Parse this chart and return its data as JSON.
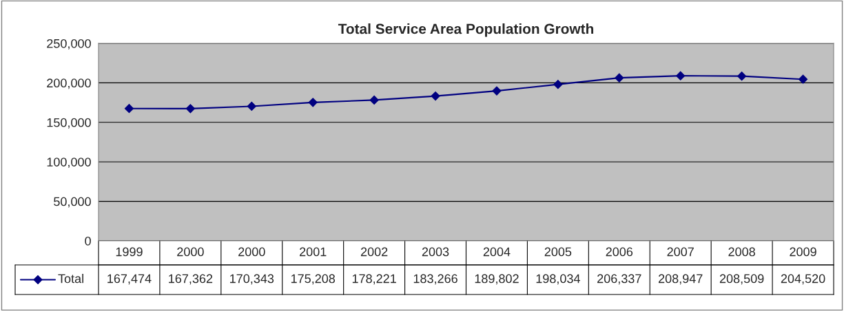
{
  "chart_data": {
    "type": "line",
    "title": "Total Service Area Population Growth",
    "categories": [
      "1999",
      "2000",
      "2000",
      "2001",
      "2002",
      "2003",
      "2004",
      "2005",
      "2006",
      "2007",
      "2008",
      "2009"
    ],
    "series": [
      {
        "name": "Total",
        "color": "#000080",
        "values": [
          167474,
          167362,
          170343,
          175208,
          178221,
          183266,
          189802,
          198034,
          206337,
          208947,
          208509,
          204520
        ],
        "value_labels": [
          "167,474",
          "167,362",
          "170,343",
          "175,208",
          "178,221",
          "183,266",
          "189,802",
          "198,034",
          "206,337",
          "208,947",
          "208,509",
          "204,520"
        ]
      }
    ],
    "ylim": [
      0,
      250000
    ],
    "yticks": [
      {
        "value": 0,
        "label": "0"
      },
      {
        "value": 50000,
        "label": "50,000"
      },
      {
        "value": 100000,
        "label": "100,000"
      },
      {
        "value": 150000,
        "label": "150,000"
      },
      {
        "value": 200000,
        "label": "200,000"
      },
      {
        "value": 250000,
        "label": "250,000"
      }
    ],
    "grid": "y",
    "marker": "diamond",
    "line_style": "solid",
    "legend": "bottom"
  }
}
